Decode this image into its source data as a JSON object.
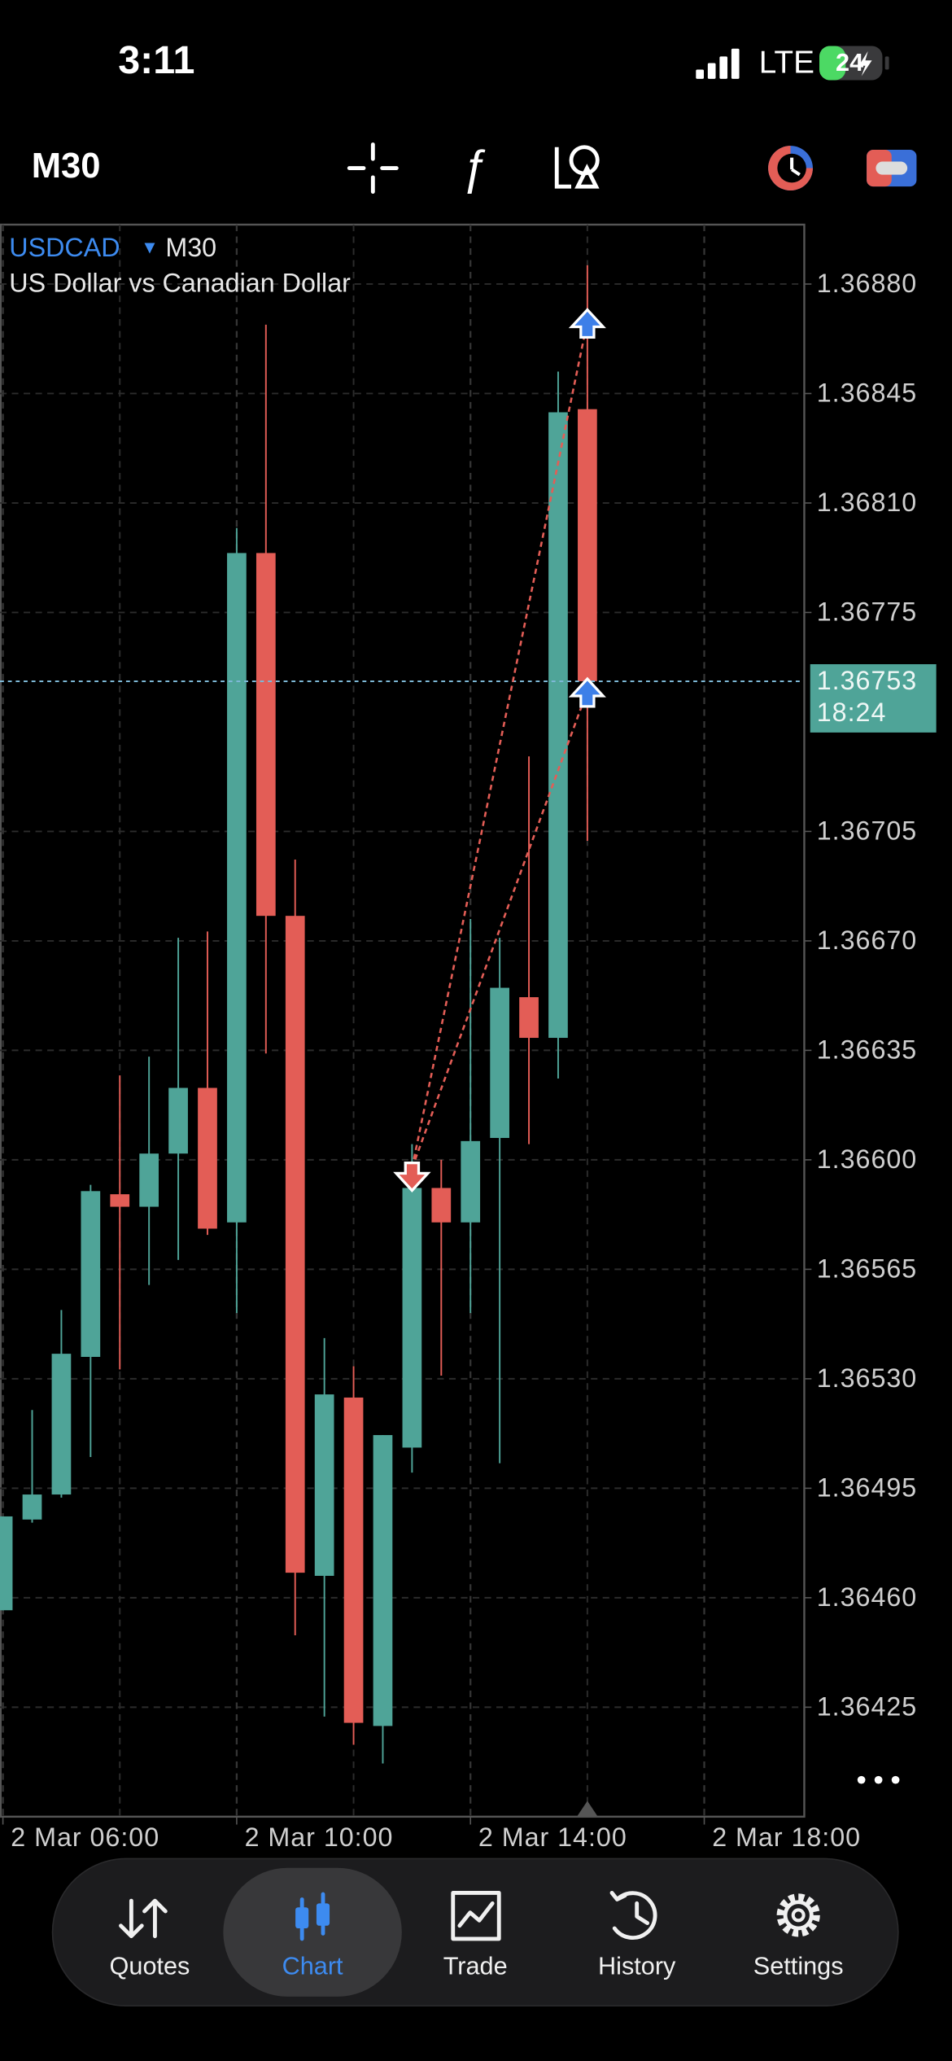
{
  "status_bar": {
    "time": "3:11",
    "network": "LTE",
    "battery": "24"
  },
  "toolbar": {
    "timeframe": "M30"
  },
  "chart_data": {
    "type": "candlestick",
    "symbol": "USDCAD",
    "timeframe": "M30",
    "title": "US Dollar vs Canadian Dollar",
    "x": [
      6,
      6.5,
      7,
      7.5,
      8,
      8.5,
      9,
      9.5,
      10,
      10.5,
      11,
      11.5,
      12,
      12.5,
      13,
      13.5,
      14,
      14.5,
      15,
      15.5,
      16
    ],
    "open": [
      1.36456,
      1.36485,
      1.36493,
      1.36537,
      1.36589,
      1.36585,
      1.36602,
      1.36623,
      1.3658,
      1.36794,
      1.36678,
      1.36467,
      1.36524,
      1.36419,
      1.36508,
      1.36591,
      1.3658,
      1.36607,
      1.36652,
      1.36639,
      1.3684
    ],
    "high": [
      1.36486,
      1.3652,
      1.36552,
      1.36592,
      1.36627,
      1.36633,
      1.36671,
      1.36673,
      1.36802,
      1.36867,
      1.36696,
      1.36543,
      1.36534,
      1.36512,
      1.36605,
      1.366,
      1.36677,
      1.36671,
      1.36729,
      1.36852,
      1.36886
    ],
    "low": [
      1.36456,
      1.36484,
      1.36492,
      1.36505,
      1.36533,
      1.3656,
      1.36568,
      1.36576,
      1.36551,
      1.36634,
      1.36448,
      1.36422,
      1.36413,
      1.36407,
      1.365,
      1.36531,
      1.36551,
      1.36503,
      1.36605,
      1.36626,
      1.36702
    ],
    "close": [
      1.36486,
      1.36493,
      1.36538,
      1.3659,
      1.36585,
      1.36602,
      1.36623,
      1.36578,
      1.36794,
      1.36678,
      1.36468,
      1.36525,
      1.3642,
      1.36512,
      1.36591,
      1.3658,
      1.36606,
      1.36655,
      1.36639,
      1.36839,
      1.36753
    ],
    "up_color": "#4fa498",
    "down_color": "#e35d56",
    "xlim": [
      5.95,
      19.7
    ],
    "xticks": [
      {
        "value": 6,
        "label": "2 Mar 06:00"
      },
      {
        "value": 10,
        "label": "2 Mar 10:00"
      },
      {
        "value": 14,
        "label": "2 Mar 14:00"
      },
      {
        "value": 18,
        "label": "2 Mar 18:00"
      }
    ],
    "xminor": [
      8,
      12,
      16
    ],
    "ylim": [
      1.3639,
      1.36899
    ],
    "yticks": [
      {
        "value": 1.3688,
        "label": "1.36880"
      },
      1.36845,
      {
        "value": 1.3681,
        "label": "1.36810"
      },
      1.36775,
      1.36705,
      {
        "value": 1.3667,
        "label": "1.36670"
      },
      1.36635,
      {
        "value": 1.366,
        "label": "1.36600"
      },
      1.36565,
      {
        "value": 1.3653,
        "label": "1.36530"
      },
      1.36495,
      {
        "value": 1.3646,
        "label": "1.36460"
      },
      1.36425
    ],
    "grid": true,
    "current_price": 1.36753,
    "countdown": "18:24",
    "trades": [
      {
        "open_x": 13,
        "open_price": 1.36594,
        "close_x": 16,
        "close_price": 1.36868
      },
      {
        "open_x": 13,
        "open_price": 1.36594,
        "close_x": 16,
        "close_price": 1.3675
      }
    ]
  },
  "nav": {
    "items": [
      "Quotes",
      "Chart",
      "Trade",
      "History",
      "Settings"
    ],
    "active": 1
  }
}
